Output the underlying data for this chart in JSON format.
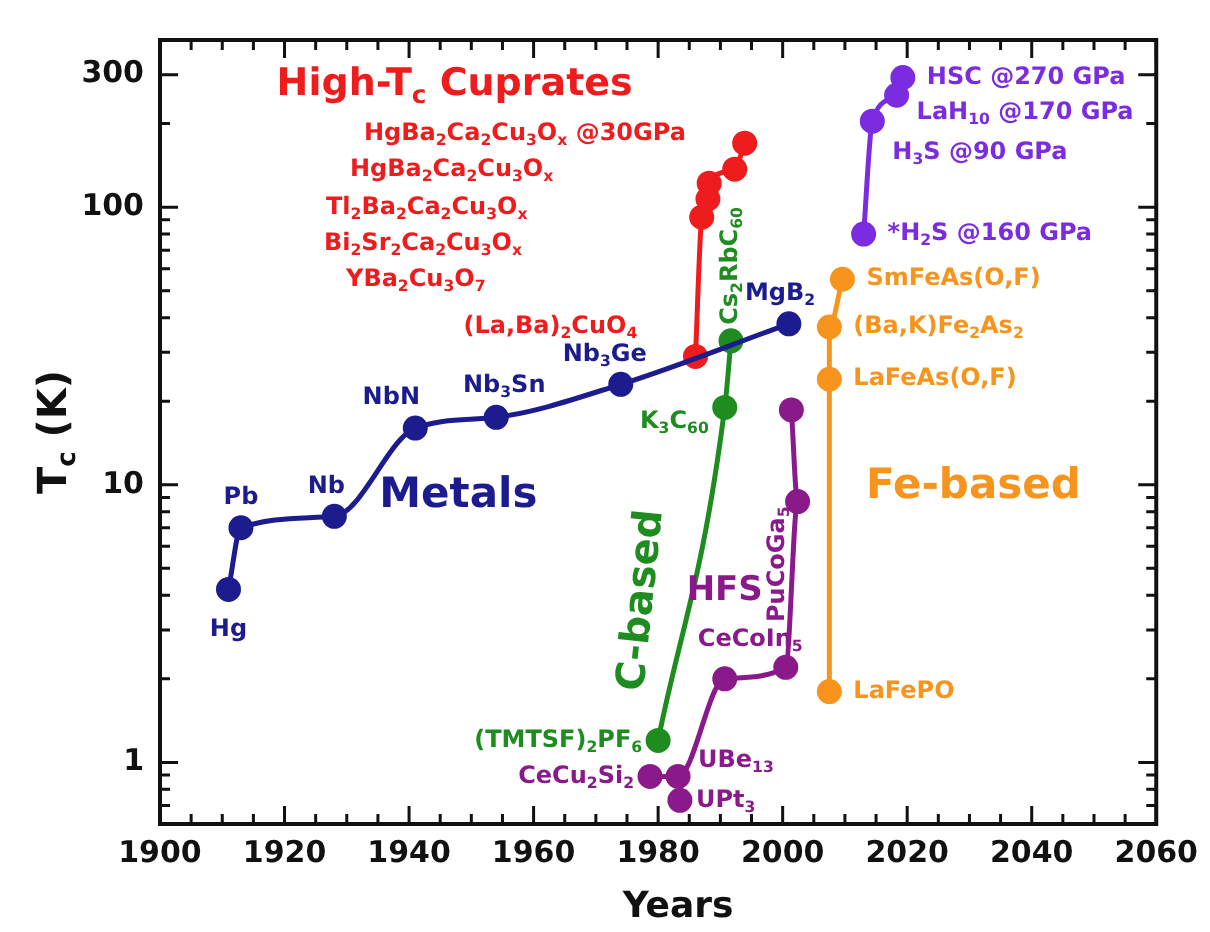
{
  "chart_data": {
    "type": "line",
    "xlabel": "Years",
    "ylabel": "T$_{c}$ (K)",
    "log": "y",
    "grid": false,
    "legend": false,
    "marker": "circle",
    "xlim": [
      1900,
      2060
    ],
    "ylim": [
      0.6,
      400
    ],
    "xticks": [
      1900,
      {
        "value": 1905,
        "label": null
      },
      {
        "value": 1910,
        "label": null
      },
      {
        "value": 1915,
        "label": null
      },
      1920,
      {
        "value": 1925,
        "label": null
      },
      {
        "value": 1930,
        "label": null
      },
      {
        "value": 1935,
        "label": null
      },
      1940,
      {
        "value": 1945,
        "label": null
      },
      {
        "value": 1950,
        "label": null
      },
      {
        "value": 1955,
        "label": null
      },
      1960,
      {
        "value": 1965,
        "label": null
      },
      {
        "value": 1970,
        "label": null
      },
      {
        "value": 1975,
        "label": null
      },
      1980,
      {
        "value": 1985,
        "label": null
      },
      {
        "value": 1990,
        "label": null
      },
      {
        "value": 1995,
        "label": null
      },
      2000,
      {
        "value": 2005,
        "label": null
      },
      {
        "value": 2010,
        "label": null
      },
      {
        "value": 2015,
        "label": null
      },
      2020,
      {
        "value": 2025,
        "label": null
      },
      {
        "value": 2030,
        "label": null
      },
      {
        "value": 2035,
        "label": null
      },
      2040,
      {
        "value": 2045,
        "label": null
      },
      {
        "value": 2050,
        "label": null
      },
      {
        "value": 2055,
        "label": null
      },
      2060
    ],
    "yticks": [
      {
        "value": 0.7,
        "label": null
      },
      {
        "value": 0.8,
        "label": null
      },
      {
        "value": 0.9,
        "label": null
      },
      1,
      {
        "value": 2,
        "label": null
      },
      {
        "value": 3,
        "label": null
      },
      {
        "value": 4,
        "label": null
      },
      {
        "value": 5,
        "label": null
      },
      {
        "value": 6,
        "label": null
      },
      {
        "value": 7,
        "label": null
      },
      {
        "value": 8,
        "label": null
      },
      {
        "value": 9,
        "label": null
      },
      10,
      {
        "value": 20,
        "label": null
      },
      {
        "value": 30,
        "label": null
      },
      {
        "value": 40,
        "label": null
      },
      {
        "value": 50,
        "label": null
      },
      {
        "value": 60,
        "label": null
      },
      {
        "value": 70,
        "label": null
      },
      {
        "value": 80,
        "label": null
      },
      {
        "value": 90,
        "label": null
      },
      100,
      {
        "value": 200,
        "label": null
      },
      300
    ],
    "series": [
      {
        "name": "Metals",
        "type": "line",
        "color": "#1c1c8f",
        "x": [
          1911,
          1913,
          1928,
          1941,
          1954,
          1974,
          2001
        ],
        "values": [
          4.2,
          7,
          7.7,
          16,
          17.5,
          23,
          38
        ]
      },
      {
        "name": "High-T$_{c}$ Cuprates",
        "type": "line",
        "color": "#ee1c1c",
        "x": [
          1986,
          1987,
          1988,
          1988.2,
          1992.3,
          1993.9
        ],
        "values": [
          29,
          92,
          107,
          122,
          137,
          170
        ]
      },
      {
        "name": "C-based",
        "type": "line",
        "color": "#1e8c1e",
        "x": [
          1980,
          1990.7,
          1991.7
        ],
        "values": [
          1.2,
          19,
          33
        ]
      },
      {
        "name": "HFS",
        "type": "line",
        "color": "#8a1a8a",
        "x": [
          1978.7,
          1983.2,
          1990.7,
          2000.5,
          2002.4,
          2001.4
        ],
        "values": [
          0.89,
          0.89,
          2,
          2.2,
          8.7,
          18.6
        ]
      },
      {
        "type": "scatter",
        "color": "#8a1a8a",
        "x": [
          1983.5
        ],
        "values": [
          0.73
        ]
      },
      {
        "name": "Fe-based",
        "type": "line",
        "color": "#f7941d",
        "x": [
          2007.5,
          2007.5,
          2007.5,
          2009.6
        ],
        "values": [
          1.8,
          24,
          37,
          55
        ]
      },
      {
        "type": "line",
        "color": "#7b2be0",
        "x": [
          2013,
          2014.4,
          2018.3,
          2019.3
        ],
        "values": [
          80,
          204,
          253,
          293
        ]
      }
    ],
    "annotations": [
      {
        "text": "Hg",
        "x": 1911,
        "y": 4.2
      },
      {
        "text": "Pb",
        "x": 1913,
        "y": 7
      },
      {
        "text": "Nb",
        "x": 1928,
        "y": 7.7
      },
      {
        "text": "NbN",
        "x": 1941,
        "y": 16
      },
      {
        "text": "Nb$_{3}$Sn",
        "x": 1954,
        "y": 17.5
      },
      {
        "text": "Nb$_{3}$Ge",
        "x": 1974,
        "y": 23
      },
      {
        "text": "MgB$_{2}$",
        "x": 2001,
        "y": 38
      },
      {
        "text": "(La,Ba)$_{2}$CuO$_{4}$",
        "x": 1986,
        "y": 29
      },
      "YBa$_{2}$Cu$_{3}$O$_{7}$",
      "Bi$_{2}$Sr$_{2}$Ca$_{2}$Cu$_{3}$O$_{x}$",
      "Tl$_{2}$Ba$_{2}$Ca$_{2}$Cu$_{3}$O$_{x}$",
      "HgBa$_{2}$Ca$_{2}$Cu$_{3}$O$_{x}$",
      "HgBa$_{2}$Ca$_{2}$Cu$_{3}$O$_{x}$ @30GPa",
      {
        "text": "(TMTSF)$_{2}$PF$_{6}$",
        "x": 1980,
        "y": 1.2
      },
      {
        "text": "K$_{3}$C$_{60}$",
        "x": 1990.7,
        "y": 19
      },
      {
        "text": "Cs$_{2}$RbC$_{60}$",
        "x": 1991.7,
        "y": 33
      },
      {
        "text": "CeCu$_{2}$Si$_{2}$",
        "x": 1978.7,
        "y": 0.89
      },
      {
        "text": "UBe$_{13}$",
        "x": 1983.2,
        "y": 0.89
      },
      {
        "text": "CeCoIn$_{5}$",
        "x": 2000.5,
        "y": 2.2
      },
      "PuCoGa$_{5}$",
      {
        "text": "UPt$_{3}$",
        "x": 1983.5,
        "y": 0.73
      },
      {
        "text": "LaFePO",
        "x": 2007.5,
        "y": 1.8
      },
      {
        "text": "LaFeAs(O,F)",
        "x": 2007.5,
        "y": 24
      },
      {
        "text": "(Ba,K)Fe$_{2}$As$_{2}$",
        "x": 2007.5,
        "y": 37
      },
      {
        "text": "SmFeAs(O,F)",
        "x": 2009.6,
        "y": 55
      },
      {
        "text": "*H$_{2}$S @160 GPa",
        "x": 2013,
        "y": 80
      },
      {
        "text": "H$_{3}$S @90 GPa",
        "x": 2014.4,
        "y": 204
      },
      {
        "text": "LaH$_{10}$ @170 GPa",
        "x": 2018.3,
        "y": 253
      },
      {
        "text": "HSC @270 GPa",
        "x": 2019.3,
        "y": 293
      }
    ]
  }
}
